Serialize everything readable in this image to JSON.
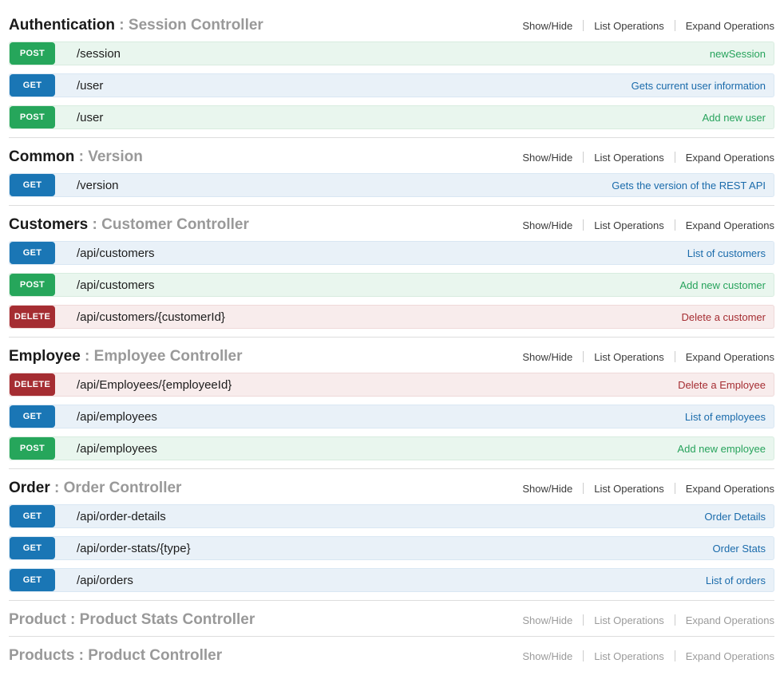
{
  "ui": {
    "section_controls": [
      "Show/Hide",
      "List Operations",
      "Expand Operations"
    ]
  },
  "colors": {
    "heading_text": "#1a1a1a",
    "heading_muted": "#999999",
    "controls_text": "#3b3b3b",
    "controls_muted": "#9b9b9b",
    "divider": "#dddddd"
  },
  "method_styles": {
    "GET": {
      "badge_bg": "#1a76b5",
      "row_bg": "#e9f1f8",
      "row_border": "#d9e7f3",
      "link": "#1a6bab"
    },
    "POST": {
      "badge_bg": "#26a65b",
      "row_bg": "#e9f6ee",
      "row_border": "#d8ecdf",
      "link": "#27a35c"
    },
    "DELETE": {
      "badge_bg": "#a52d32",
      "row_bg": "#f8ecec",
      "row_border": "#efd9d9",
      "link": "#a52d32"
    }
  },
  "sections": [
    {
      "name": "Authentication",
      "separator": " : ",
      "controller": "Session Controller",
      "disabled": false,
      "endpoints": [
        {
          "method": "POST",
          "path": "/session",
          "summary": "newSession"
        },
        {
          "method": "GET",
          "path": "/user",
          "summary": "Gets current user information"
        },
        {
          "method": "POST",
          "path": "/user",
          "summary": "Add new user"
        }
      ]
    },
    {
      "name": "Common",
      "separator": " : ",
      "controller": "Version",
      "disabled": false,
      "endpoints": [
        {
          "method": "GET",
          "path": "/version",
          "summary": "Gets the version of the REST API"
        }
      ]
    },
    {
      "name": "Customers",
      "separator": " : ",
      "controller": "Customer Controller",
      "disabled": false,
      "endpoints": [
        {
          "method": "GET",
          "path": "/api/customers",
          "summary": "List of customers"
        },
        {
          "method": "POST",
          "path": "/api/customers",
          "summary": "Add new customer"
        },
        {
          "method": "DELETE",
          "path": "/api/customers/{customerId}",
          "summary": "Delete a customer"
        }
      ]
    },
    {
      "name": "Employee",
      "separator": " : ",
      "controller": "Employee Controller",
      "disabled": false,
      "endpoints": [
        {
          "method": "DELETE",
          "path": "/api/Employees/{employeeId}",
          "summary": "Delete a Employee"
        },
        {
          "method": "GET",
          "path": "/api/employees",
          "summary": "List of employees"
        },
        {
          "method": "POST",
          "path": "/api/employees",
          "summary": "Add new employee"
        }
      ]
    },
    {
      "name": "Order",
      "separator": " : ",
      "controller": "Order Controller",
      "disabled": false,
      "endpoints": [
        {
          "method": "GET",
          "path": "/api/order-details",
          "summary": "Order Details"
        },
        {
          "method": "GET",
          "path": "/api/order-stats/{type}",
          "summary": "Order Stats"
        },
        {
          "method": "GET",
          "path": "/api/orders",
          "summary": "List of orders"
        }
      ]
    },
    {
      "name": "Product",
      "separator": " : ",
      "controller": "Product Stats Controller",
      "disabled": true,
      "endpoints": []
    },
    {
      "name": "Products",
      "separator": " : ",
      "controller": "Product Controller",
      "disabled": true,
      "endpoints": []
    }
  ]
}
